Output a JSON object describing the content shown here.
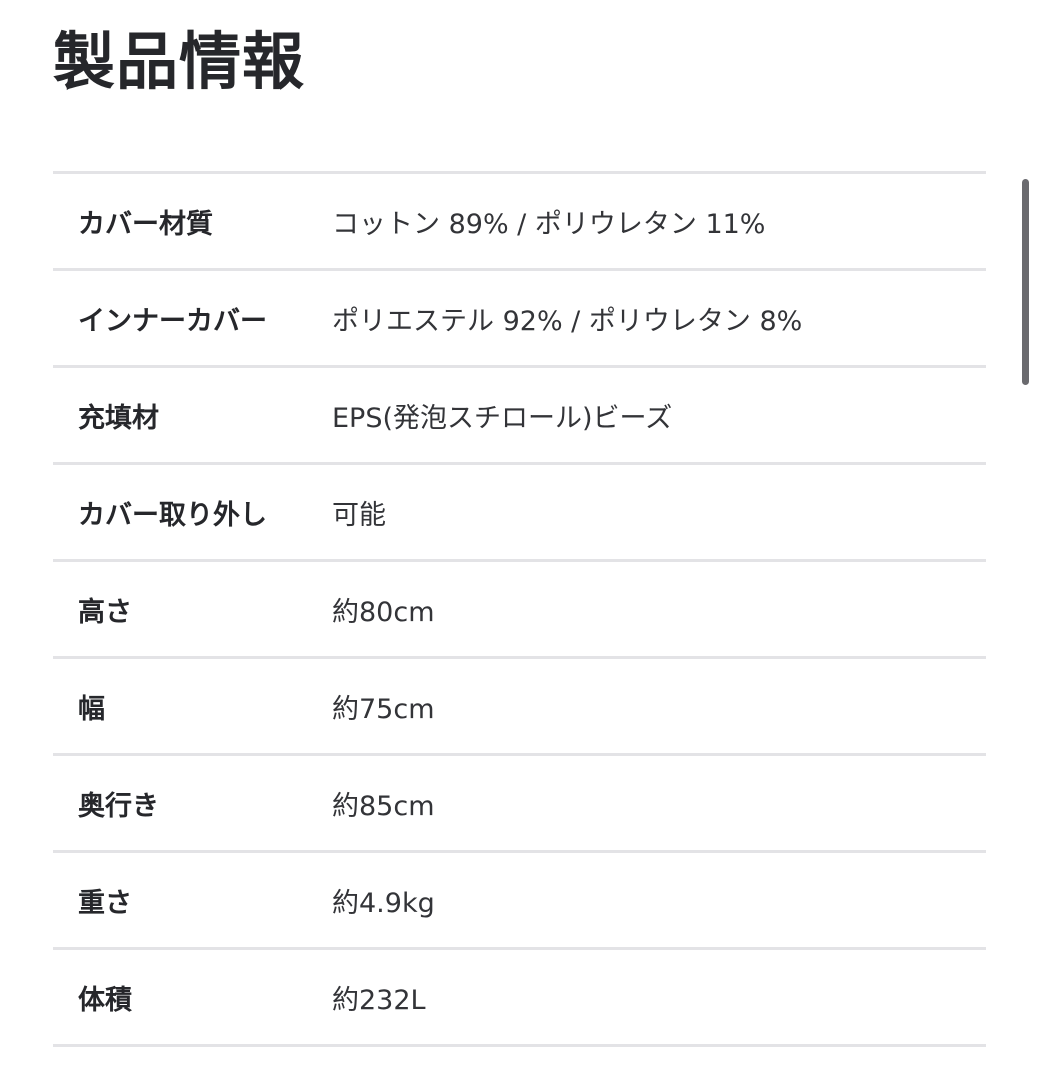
{
  "title": "製品情報",
  "rows": [
    {
      "label": "カバー材質",
      "value": "コットン 89% / ポリウレタン 11%"
    },
    {
      "label": "インナーカバー",
      "value": "ポリエステル 92% / ポリウレタン 8%"
    },
    {
      "label": "充填材",
      "value": "EPS(発泡スチロール)ビーズ"
    },
    {
      "label": "カバー取り外し",
      "value": "可能"
    },
    {
      "label": "高さ",
      "value": "約80cm"
    },
    {
      "label": "幅",
      "value": "約75cm"
    },
    {
      "label": "奥行き",
      "value": "約85cm"
    },
    {
      "label": "重さ",
      "value": "約4.9kg"
    },
    {
      "label": "体積",
      "value": "約232L"
    }
  ]
}
